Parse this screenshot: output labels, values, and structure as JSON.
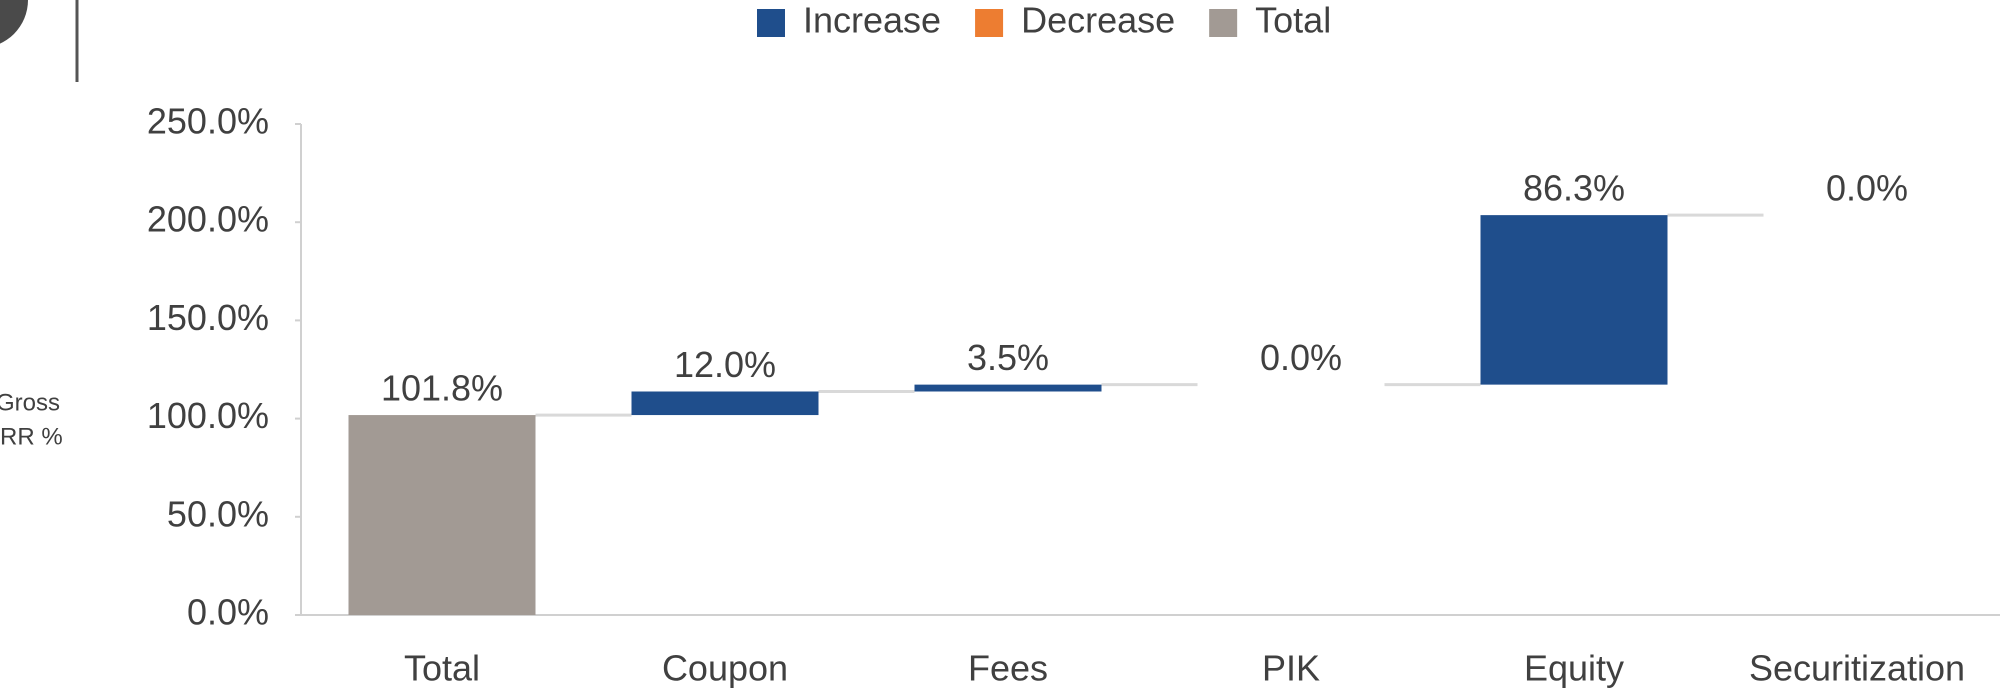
{
  "chart_data": {
    "type": "waterfall",
    "ylabel_lines": [
      "Gross",
      "IRR %"
    ],
    "categories": [
      "Total",
      "Coupon",
      "Fees",
      "PIK",
      "Equity",
      "Securitization"
    ],
    "values": [
      101.8,
      12.0,
      3.5,
      0.0,
      86.3,
      0.0
    ],
    "value_labels": [
      "101.8%",
      "12.0%",
      "3.5%",
      "0.0%",
      "86.3%",
      "0.0%"
    ],
    "kinds": [
      "total",
      "increase",
      "increase",
      "increase",
      "increase",
      "increase"
    ],
    "series": [
      {
        "name": "Increase",
        "color": "#1f4e8c"
      },
      {
        "name": "Decrease",
        "color": "#ed7d31"
      },
      {
        "name": "Total",
        "color": "#a29a94"
      }
    ],
    "ylim": [
      0,
      250
    ],
    "yticks": [
      {
        "value": 0,
        "label": "0.0%"
      },
      {
        "value": 50,
        "label": "50.0%"
      },
      {
        "value": 100,
        "label": "100.0%"
      },
      {
        "value": 150,
        "label": "150.0%"
      },
      {
        "value": 200,
        "label": "200.0%"
      },
      {
        "value": 250,
        "label": "250.0%"
      }
    ]
  }
}
